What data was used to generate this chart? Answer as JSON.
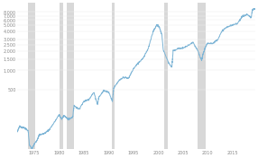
{
  "background_color": "#ffffff",
  "plot_bg_color": "#ffffff",
  "line_color": "#7eb5d6",
  "line_width": 0.7,
  "recession_color": "#d8d8d8",
  "recession_alpha": 1.0,
  "recessions": [
    [
      1973.75,
      1975.17
    ],
    [
      1980.0,
      1980.75
    ],
    [
      1981.5,
      1982.92
    ],
    [
      1990.58,
      1991.25
    ],
    [
      2001.25,
      2001.92
    ],
    [
      2007.92,
      2009.5
    ]
  ],
  "xmin": 1971.5,
  "xmax": 2019.5,
  "ymin": 60,
  "ymax": 11000,
  "yticks": [
    500,
    1000,
    1500,
    2000,
    2500,
    3000,
    4000,
    5000,
    6000,
    7000,
    8000
  ],
  "xticks": [
    1975,
    1980,
    1985,
    1990,
    1995,
    2000,
    2005,
    2010,
    2015
  ],
  "tick_fontsize": 3.5,
  "grid_color": "#eeeeee",
  "nasdaq_data": {
    "years": [
      1971.5,
      1972,
      1973,
      1973.75,
      1974,
      1974.5,
      1975,
      1975.5,
      1976,
      1977,
      1978,
      1979,
      1980,
      1980.5,
      1981,
      1981.75,
      1982,
      1982.75,
      1983,
      1984,
      1985,
      1986,
      1987,
      1987.75,
      1988,
      1989,
      1990,
      1990.75,
      1991,
      1992,
      1993,
      1994,
      1995,
      1996,
      1997,
      1998,
      1999,
      1999.75,
      2000.25,
      2000.75,
      2001,
      2002,
      2002.75,
      2003,
      2004,
      2005,
      2006,
      2007,
      2008,
      2008.75,
      2009,
      2009.5,
      2010,
      2011,
      2012,
      2013,
      2014,
      2015,
      2016,
      2017,
      2018,
      2018.75,
      2019,
      2019.5
    ],
    "values": [
      110,
      135,
      128,
      115,
      70,
      60,
      72,
      82,
      100,
      105,
      120,
      155,
      205,
      175,
      200,
      175,
      175,
      190,
      285,
      250,
      330,
      355,
      455,
      295,
      380,
      485,
      460,
      330,
      525,
      680,
      780,
      750,
      1060,
      1300,
      1575,
      2200,
      4070,
      5100,
      4600,
      3500,
      2100,
      1350,
      1110,
      2000,
      2175,
      2210,
      2415,
      2700,
      2000,
      1400,
      1750,
      2270,
      2650,
      2610,
      3020,
      4180,
      4740,
      5010,
      5385,
      6910,
      7330,
      6500,
      8600,
      9000
    ]
  }
}
